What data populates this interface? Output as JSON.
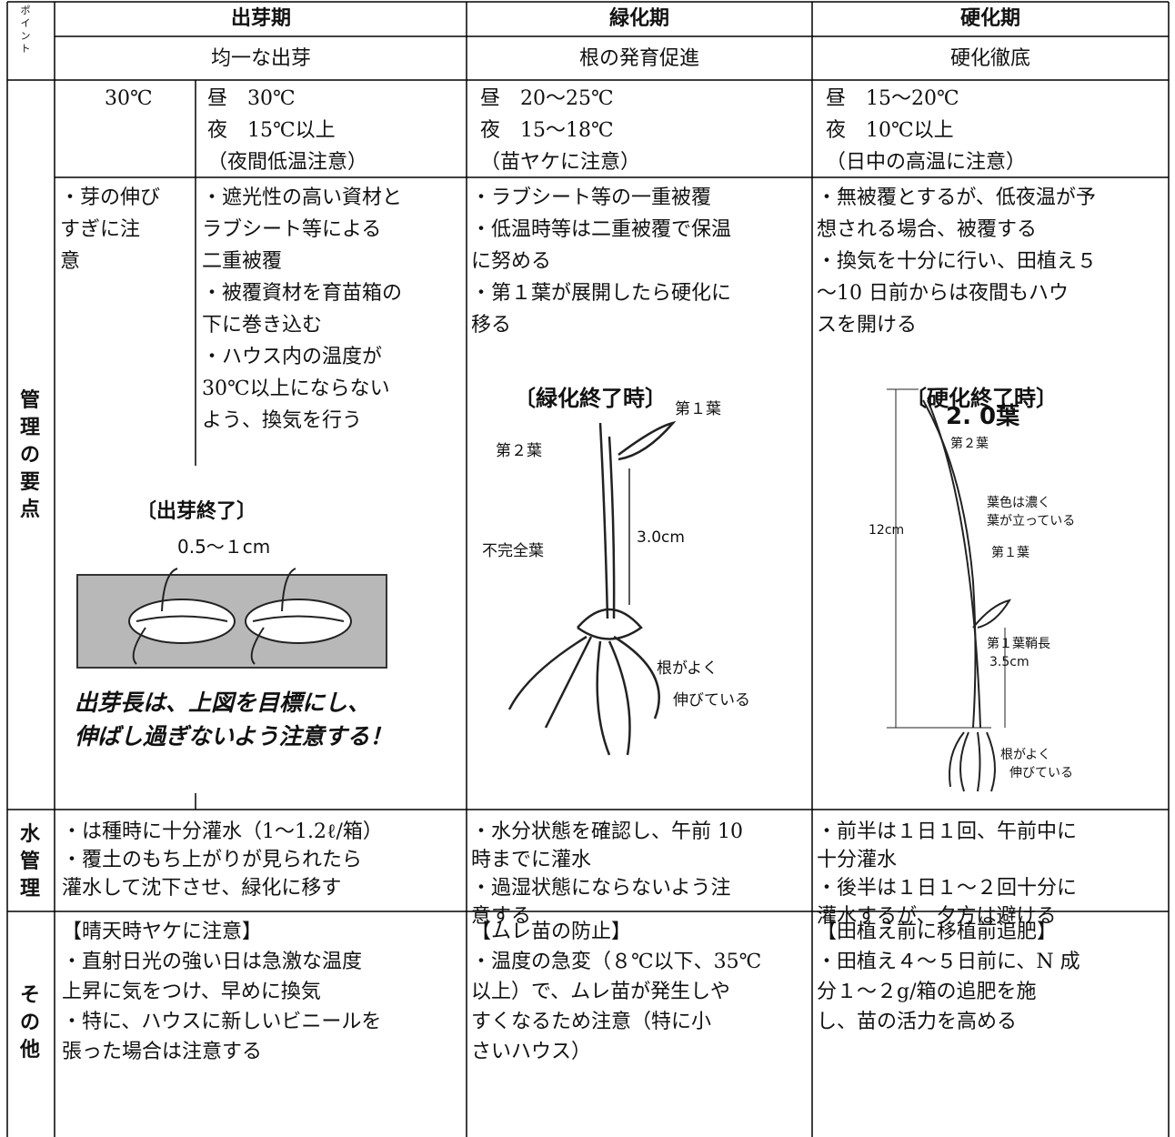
{
  "header": {
    "point_label": [
      "ポ",
      "イ",
      "ン",
      "ト"
    ],
    "stages": [
      {
        "name": "出芽期",
        "goal": "均一な出芽"
      },
      {
        "name": "緑化期",
        "goal": "根の発育促進"
      },
      {
        "name": "硬化期",
        "goal": "硬化徹底"
      }
    ]
  },
  "management": {
    "label": [
      "管",
      "理",
      "の",
      "要",
      "点"
    ],
    "emergence": {
      "temperature": [
        "30℃"
      ],
      "temperature_detail": [
        "昼　30℃",
        "夜　15℃以上",
        "（夜間低温注意）"
      ],
      "notes_left": [
        "・芽の伸び",
        "すぎに注",
        "意"
      ],
      "notes_right": [
        "・遮光性の高い資材と",
        "ラブシート等による",
        "二重被覆",
        "・被覆資材を育苗箱の",
        "下に巻き込む",
        "・ハウス内の温度が",
        "30℃以上にならない",
        "よう、換気を行う"
      ],
      "figure": {
        "title": "〔出芽終了〕",
        "length": "0.5～１cm",
        "caption": [
          "出芽長は、上図を目標にし、",
          "伸ばし過ぎないよう注意する！"
        ]
      }
    },
    "greening": {
      "temperature": [
        "昼　20～25℃",
        "夜　15～18℃",
        "（苗ヤケに注意）"
      ],
      "notes": [
        "・ラブシート等の一重被覆",
        "・低温時等は二重被覆で保温",
        "に努める",
        "・第１葉が展開したら硬化に",
        "移る"
      ],
      "figure": {
        "title": "〔緑化終了時〕",
        "labels": [
          "第１葉",
          "第２葉",
          "3.0cm",
          "不完全葉",
          "根がよく",
          "伸びている"
        ]
      }
    },
    "hardening": {
      "temperature": [
        "昼　15～20℃",
        "夜　10℃以上",
        "（日中の高温に注意）"
      ],
      "notes": [
        "・無被覆とするが、低夜温が予",
        "想される場合、被覆する",
        "・換気を十分に行い、田植え５",
        "～10 日前からは夜間もハウ",
        "スを開ける"
      ],
      "figure": {
        "title": "〔硬化終了時〕",
        "leaf_count": "2. 0葉",
        "labels": [
          "第２葉",
          "葉色は濃く",
          "葉が立っている",
          "12cm",
          "第１葉",
          "第１葉鞘長",
          "3.5cm",
          "根がよく",
          "伸びている"
        ]
      }
    }
  },
  "water": {
    "label": [
      "水",
      "管",
      "理"
    ],
    "emergence": [
      "・は種時に十分灌水（1～1.2ℓ/箱）",
      "・覆土のもち上がりが見られたら",
      "灌水して沈下させ、緑化に移す"
    ],
    "greening": [
      "・水分状態を確認し、午前 10",
      "時までに灌水",
      "・過湿状態にならないよう注",
      "意する"
    ],
    "hardening": [
      "・前半は１日１回、午前中に",
      "十分灌水",
      "・後半は１日１～２回十分に",
      "灌水するが、夕方は避ける"
    ]
  },
  "other": {
    "label": [
      "そ",
      "の",
      "他"
    ],
    "emergence": [
      "【晴天時ヤケに注意】",
      "・直射日光の強い日は急激な温度",
      "上昇に気をつけ、早めに換気",
      "・特に、ハウスに新しいビニールを",
      "張った場合は注意する"
    ],
    "greening": [
      "【ムレ苗の防止】",
      "・温度の急変（８℃以下、35℃",
      "以上）で、ムレ苗が発生しや",
      "すくなるため注意（特に小",
      "さいハウス）"
    ],
    "hardening": [
      "【田植え前に移植前追肥】",
      "・田植え４～５日前に、N 成",
      "分１～２g/箱の追肥を施",
      "し、苗の活力を高める"
    ]
  }
}
